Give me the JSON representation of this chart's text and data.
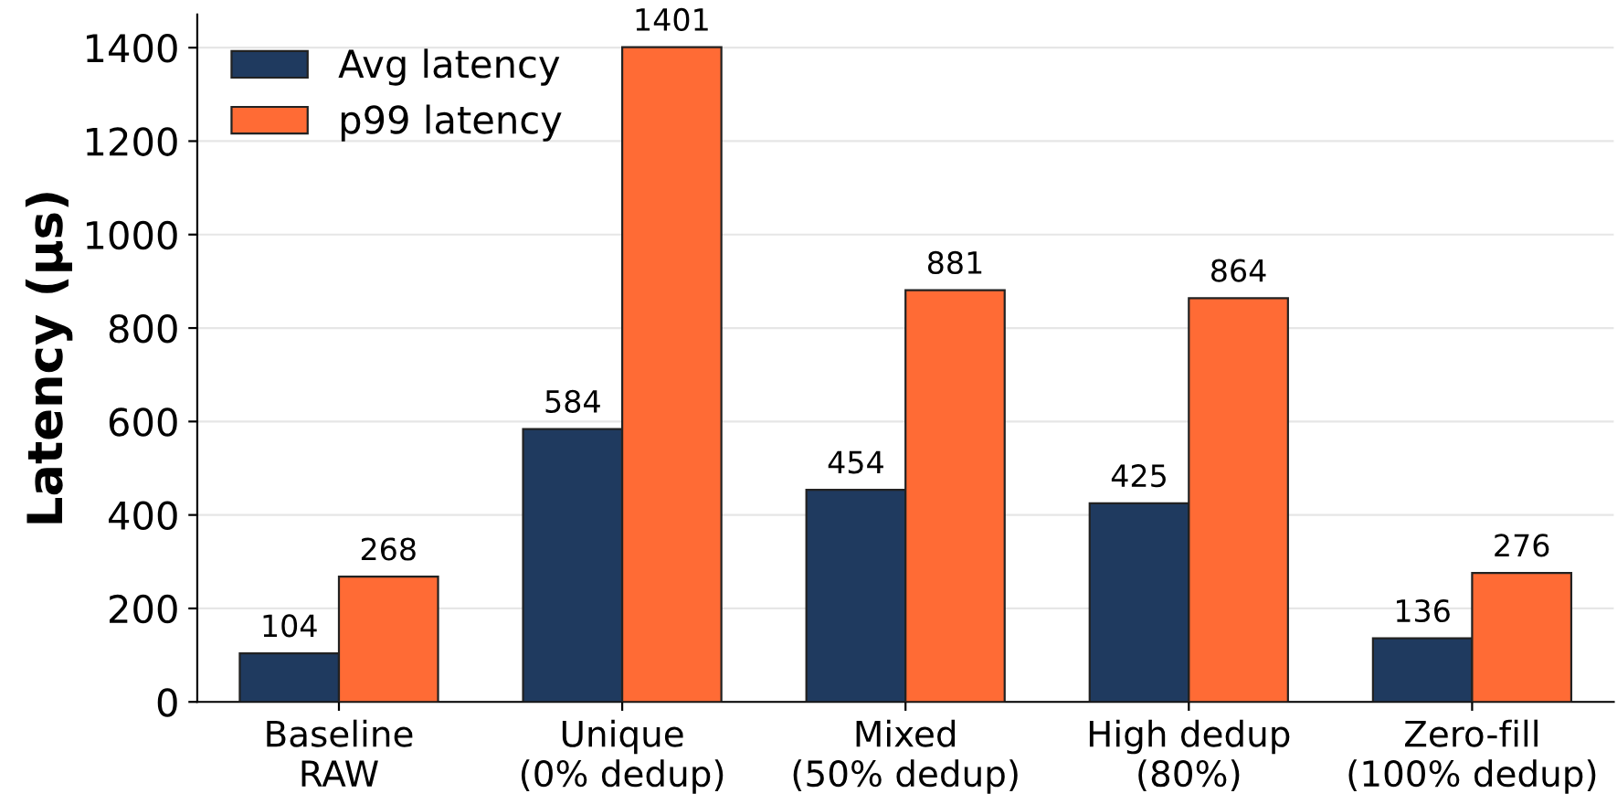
{
  "chart_data": {
    "type": "bar",
    "ylabel": "Latency (µs)",
    "categories": [
      "Baseline\nRAW",
      "Unique\n(0% dedup)",
      "Mixed\n(50% dedup)",
      "High dedup\n(80%)",
      "Zero-fill\n(100% dedup)"
    ],
    "series": [
      {
        "name": "Avg latency",
        "color": "#1f3a5f",
        "values": [
          104,
          584,
          454,
          425,
          136
        ]
      },
      {
        "name": "p99 latency",
        "color": "#ff6b35",
        "values": [
          268,
          1401,
          881,
          864,
          276
        ]
      }
    ],
    "ylim": [
      0,
      1471
    ],
    "yticks": [
      0,
      200,
      400,
      600,
      800,
      1000,
      1200,
      1400
    ],
    "grid": "y",
    "legend": "top left",
    "data_labels": true
  }
}
